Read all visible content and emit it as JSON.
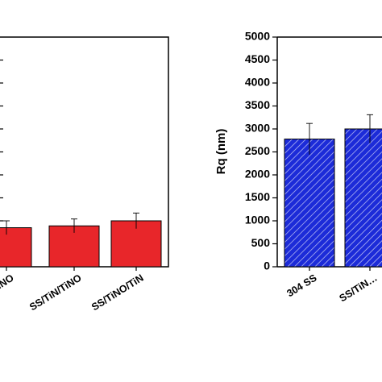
{
  "chart_data": [
    {
      "type": "bar",
      "title": "",
      "xlabel": "",
      "ylabel": "",
      "categories": [
        "…iNO",
        "SS/TiN/TiNO",
        "SS/TiNO/TiN"
      ],
      "values": [
        850,
        890,
        1000
      ],
      "errors": [
        150,
        150,
        170
      ],
      "ylim": [
        0,
        5000
      ],
      "bar_color": "#e8262a",
      "hatch": "none",
      "grid": false,
      "note": "left panel is cropped at the left edge; y tick labels not visible"
    },
    {
      "type": "bar",
      "title": "",
      "xlabel": "",
      "ylabel": "Rq (nm)",
      "categories": [
        "304 SS",
        "SS/TiN…"
      ],
      "values": [
        2780,
        3000
      ],
      "errors": [
        340,
        310
      ],
      "ylim": [
        0,
        5000
      ],
      "yticks": [
        "0",
        "500",
        "1000",
        "1500",
        "2000",
        "2500",
        "3000",
        "3500",
        "4000",
        "4500",
        "5000"
      ],
      "bar_color": "#1c2bd8",
      "hatch": "diagonal",
      "grid": false
    }
  ]
}
